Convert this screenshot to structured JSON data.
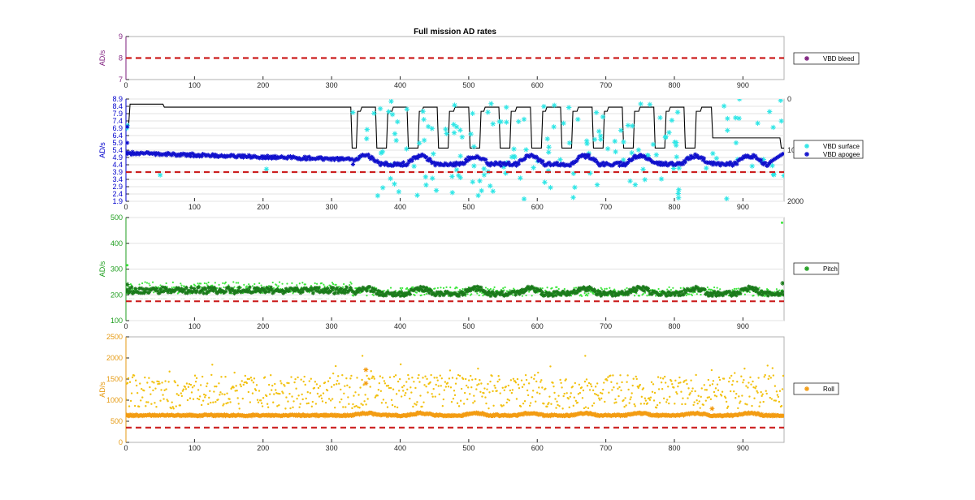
{
  "title": "Full mission AD rates",
  "chart_data": [
    {
      "type": "scatter",
      "title": "Full mission AD rates",
      "ylabel": "AD/s",
      "ylabel_color": "#7E1E7E",
      "xlim": [
        0,
        960
      ],
      "ylim": [
        7,
        9
      ],
      "xticks": [
        0,
        100,
        200,
        300,
        400,
        500,
        600,
        700,
        800,
        900
      ],
      "yticks": [
        7,
        8,
        9
      ],
      "threshold": 8,
      "series": [
        {
          "name": "VBD bleed",
          "color": "#7E1E7E",
          "marker": "star",
          "x": [],
          "y": []
        }
      ],
      "legend_position": "right"
    },
    {
      "type": "scatter",
      "ylabel": "AD/s",
      "ylabel_color": "#0000CC",
      "xlim": [
        0,
        960
      ],
      "ylim": [
        1.9,
        8.9
      ],
      "xticks": [
        0,
        100,
        200,
        300,
        400,
        500,
        600,
        700,
        800,
        900
      ],
      "yticks": [
        1.9,
        2.4,
        2.9,
        3.4,
        3.9,
        4.4,
        4.9,
        5.4,
        5.9,
        6.4,
        6.9,
        7.4,
        7.9,
        8.4,
        8.9
      ],
      "threshold": 3.9,
      "right_axis_ticks": [
        "0",
        "1000",
        "2000"
      ],
      "grid": true,
      "series": [
        {
          "name": "VBD surface",
          "color": "#2EE6E6",
          "marker": "star"
        },
        {
          "name": "VBD apogee",
          "color": "#1010CC",
          "marker": "star"
        },
        {
          "name": "",
          "color": "#000000",
          "marker": "line"
        }
      ],
      "legend_position": "right"
    },
    {
      "type": "scatter",
      "ylabel": "AD/s",
      "ylabel_color": "#1F9E1F",
      "xlim": [
        0,
        960
      ],
      "ylim": [
        100,
        500
      ],
      "xticks": [
        0,
        100,
        200,
        300,
        400,
        500,
        600,
        700,
        800,
        900
      ],
      "yticks": [
        100,
        200,
        300,
        400,
        500
      ],
      "threshold": 175,
      "grid": true,
      "series": [
        {
          "name": "Pitch",
          "color": "#1F9E1F",
          "marker": "star"
        }
      ],
      "legend_position": "right"
    },
    {
      "type": "scatter",
      "ylabel": "AD/s",
      "ylabel_color": "#E69A12",
      "xlim": [
        0,
        960
      ],
      "ylim": [
        0,
        2500
      ],
      "xticks": [
        0,
        100,
        200,
        300,
        400,
        500,
        600,
        700,
        800,
        900
      ],
      "yticks": [
        0,
        500,
        1000,
        1500,
        2000,
        2500
      ],
      "threshold": 350,
      "series": [
        {
          "name": "Roll",
          "color": "#F39C12",
          "marker": "star"
        }
      ],
      "legend_position": "right"
    }
  ]
}
